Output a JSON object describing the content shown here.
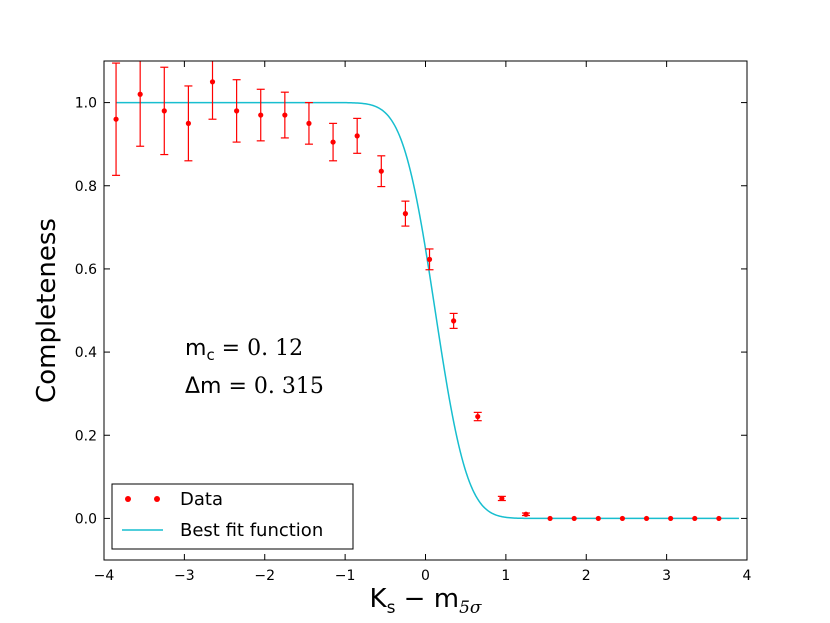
{
  "chart_data": {
    "type": "scatter",
    "title": "",
    "xlabel": "K",
    "xlabel_sub": "s",
    "xlabel_mid": " − m",
    "xlabel_sub2": "5σ",
    "ylabel": "Completeness",
    "xlim": [
      -4,
      4
    ],
    "ylim": [
      -0.1,
      1.1
    ],
    "xticks": [
      -4,
      -3,
      -2,
      -1,
      0,
      1,
      2,
      3,
      4
    ],
    "xtick_labels": [
      "−4",
      "−3",
      "−2",
      "−1",
      "0",
      "1",
      "2",
      "3",
      "4"
    ],
    "yticks": [
      0.0,
      0.2,
      0.4,
      0.6,
      0.8,
      1.0
    ],
    "ytick_labels": [
      "0.0",
      "0.2",
      "0.4",
      "0.6",
      "0.8",
      "1.0"
    ],
    "grid": false,
    "legend_position": "bottom-left",
    "series": [
      {
        "name": "Data",
        "kind": "errorbar",
        "color": "#ff0000",
        "x": [
          -3.85,
          -3.55,
          -3.25,
          -2.95,
          -2.65,
          -2.35,
          -2.05,
          -1.75,
          -1.45,
          -1.15,
          -0.85,
          -0.55,
          -0.25,
          0.05,
          0.35,
          0.65,
          0.95,
          1.25,
          1.55,
          1.85,
          2.15,
          2.45,
          2.75,
          3.05,
          3.35,
          3.65
        ],
        "y": [
          0.96,
          1.02,
          0.98,
          0.95,
          1.05,
          0.98,
          0.97,
          0.97,
          0.95,
          0.905,
          0.92,
          0.835,
          0.733,
          0.623,
          0.475,
          0.245,
          0.048,
          0.01,
          0.0,
          0.0,
          0.0,
          0.0,
          0.0,
          0.0,
          0.0,
          0.0
        ],
        "yerr": [
          0.135,
          0.125,
          0.105,
          0.09,
          0.09,
          0.075,
          0.062,
          0.055,
          0.05,
          0.045,
          0.042,
          0.037,
          0.03,
          0.025,
          0.018,
          0.01,
          0.005,
          0.003,
          0.001,
          0.001,
          0.001,
          0.001,
          0.001,
          0.001,
          0.001,
          0.001
        ]
      },
      {
        "name": "Best fit function",
        "kind": "line",
        "color": "#17becf",
        "function": "0.5*(1 - erf((x - m_c)/(sqrt(2)*Δm)))",
        "x_range": [
          -3.85,
          3.9
        ]
      }
    ],
    "annotations": [
      {
        "main": "m",
        "sub": "c",
        "rest": " = 0. 12"
      },
      {
        "main": "Δm",
        "sub": "",
        "rest": " = 0. 315"
      }
    ],
    "params": {
      "m_c": 0.12,
      "delta_m": 0.315
    }
  }
}
